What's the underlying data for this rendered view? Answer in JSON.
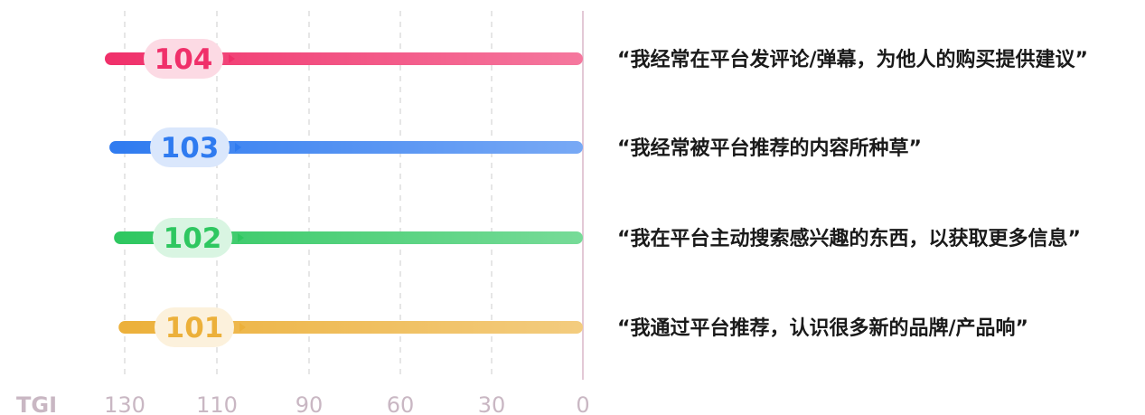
{
  "chart_data": {
    "type": "bar",
    "orientation": "horizontal",
    "axis_title": "TGI",
    "xlim": [
      130,
      0
    ],
    "tick_labels": [
      "130",
      "110",
      "90",
      "60",
      "30",
      "0"
    ],
    "grid": true,
    "categories": [
      "“我经常在平台发评论/弹幕，为他人的购买提供建议”",
      "“我经常被平台推荐的内容所种草”",
      "“我在平台主动搜索感兴趣的东西，以获取更多信息”",
      "“我通过平台推荐，认识很多新的品牌/产品响”"
    ],
    "values": [
      104,
      103,
      102,
      101
    ],
    "value_labels": [
      "104",
      "103",
      "102",
      "101"
    ],
    "colors": [
      "#f0306a",
      "#2f7bf0",
      "#2ec760",
      "#ecb03a"
    ]
  }
}
